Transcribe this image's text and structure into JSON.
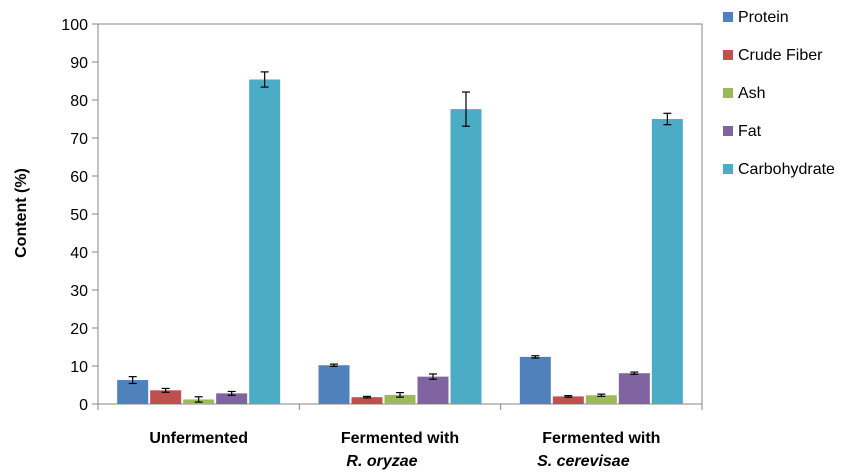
{
  "chart_data": {
    "type": "bar",
    "title": "",
    "xlabel": "",
    "ylabel": "Content (%)",
    "ylim": [
      0,
      100
    ],
    "yticks": [
      0,
      10,
      20,
      30,
      40,
      50,
      60,
      70,
      80,
      90,
      100
    ],
    "categories": [
      {
        "line1": "Unfermented",
        "line2": ""
      },
      {
        "line1": "Fermented with",
        "line2": "R. oryzae"
      },
      {
        "line1": "Fermented with",
        "line2": "S. cerevisae"
      }
    ],
    "series": [
      {
        "name": "Protein",
        "color": "#4f81bd",
        "values": [
          6.3,
          10.2,
          12.4
        ],
        "errors": [
          0.9,
          0.3,
          0.3
        ]
      },
      {
        "name": "Crude Fiber",
        "color": "#c0504d",
        "values": [
          3.6,
          1.8,
          2.0
        ],
        "errors": [
          0.5,
          0.2,
          0.2
        ]
      },
      {
        "name": "Ash",
        "color": "#9bbb59",
        "values": [
          1.2,
          2.4,
          2.3
        ],
        "errors": [
          0.7,
          0.6,
          0.3
        ]
      },
      {
        "name": "Fat",
        "color": "#8064a2",
        "values": [
          2.8,
          7.2,
          8.1
        ],
        "errors": [
          0.5,
          0.7,
          0.3
        ]
      },
      {
        "name": "Carbohydrate",
        "color": "#4bacc6",
        "values": [
          85.4,
          77.6,
          75.0
        ],
        "errors": [
          2.0,
          4.5,
          1.5
        ]
      }
    ],
    "legend": {
      "position": "right"
    },
    "grid": false
  }
}
